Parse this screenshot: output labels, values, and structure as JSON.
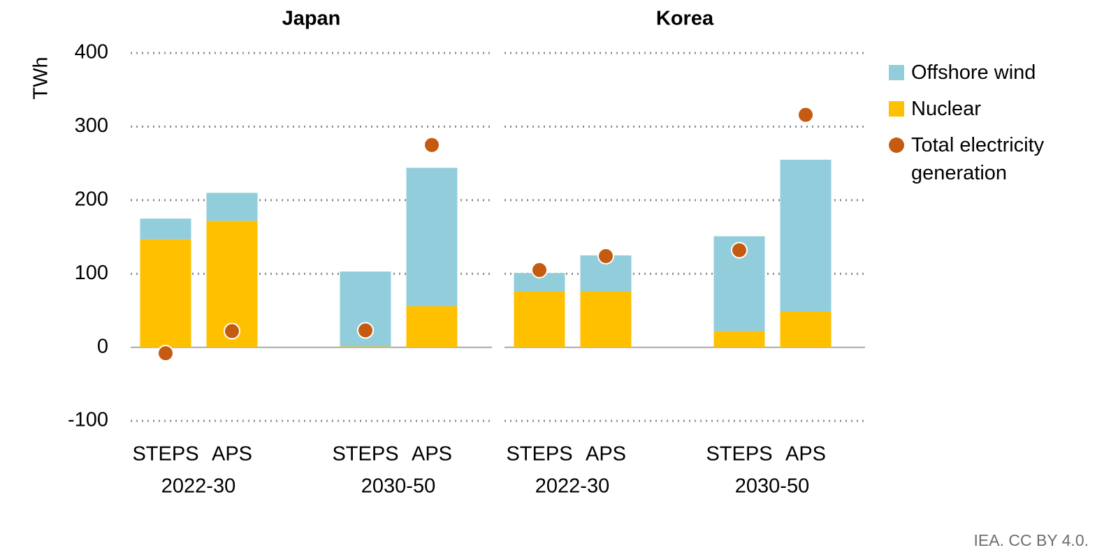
{
  "chart_data": [
    {
      "type": "bar",
      "title": "Japan",
      "ylabel": "TWh",
      "ylim": [
        -100,
        400
      ],
      "yticks": [
        -100,
        0,
        100,
        200,
        300,
        400
      ],
      "grid": true,
      "categories": [
        "STEPS",
        "APS",
        "STEPS",
        "APS"
      ],
      "groups": [
        "2022-30",
        "2030-50"
      ],
      "series": [
        {
          "name": "Offshore wind",
          "type": "bar",
          "color": "#92cddc",
          "values": [
            28,
            38,
            102,
            188
          ]
        },
        {
          "name": "Nuclear",
          "type": "bar",
          "color": "#ffc000",
          "values": [
            147,
            172,
            1,
            56
          ]
        },
        {
          "name": "Total electricity generation",
          "type": "scatter",
          "color": "#c55a11",
          "values": [
            -8,
            22,
            23,
            275
          ]
        }
      ]
    },
    {
      "type": "bar",
      "title": "Korea",
      "ylim": [
        -100,
        400
      ],
      "yticks": [
        -100,
        0,
        100,
        200,
        300,
        400
      ],
      "grid": true,
      "categories": [
        "STEPS",
        "APS",
        "STEPS",
        "APS"
      ],
      "groups": [
        "2022-30",
        "2030-50"
      ],
      "series": [
        {
          "type": "bar",
          "color": "#92cddc",
          "values": [
            25,
            49,
            129,
            206
          ]
        },
        {
          "type": "bar",
          "color": "#ffc000",
          "values": [
            76,
            76,
            22,
            49
          ]
        },
        {
          "type": "scatter",
          "color": "#c55a11",
          "values": [
            105,
            124,
            132,
            316
          ]
        }
      ]
    }
  ],
  "source": "IEA. CC BY 4.0."
}
